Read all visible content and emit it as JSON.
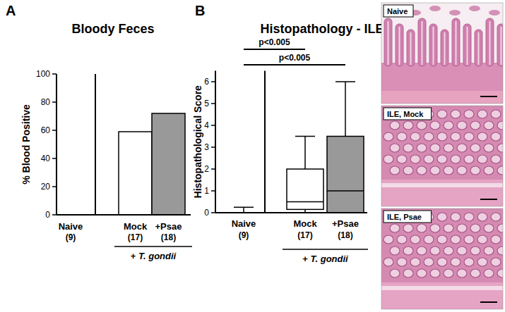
{
  "chart_data": [
    {
      "type": "bar",
      "panel_label": "A",
      "title": "Bloody Feces",
      "y_label": "% Blood Positive",
      "categories": [
        "Naive",
        "Mock",
        "+Psae"
      ],
      "n_labels": [
        "(9)",
        "(17)",
        "(18)"
      ],
      "group_label": "+ T. gondii",
      "values": [
        0,
        59,
        72
      ],
      "colors": [
        "#ffffff",
        "#ffffff",
        "#999999"
      ],
      "ylim": [
        0,
        100
      ],
      "yticks": [
        0,
        20,
        40,
        60,
        80,
        100
      ],
      "grid": false
    },
    {
      "type": "box",
      "panel_label": "B",
      "title": "Histopathology - ILEUM",
      "y_label": "Histopathological Score",
      "categories": [
        "Naive",
        "Mock",
        "+Psae"
      ],
      "n_labels": [
        "(9)",
        "(17)",
        "(18)"
      ],
      "group_label": "+ T. gondii",
      "min": [
        0,
        0,
        0
      ],
      "q1": [
        0,
        0.15,
        0
      ],
      "median": [
        0,
        0.5,
        1
      ],
      "q3": [
        0,
        2,
        3.5
      ],
      "max": [
        0.25,
        3.5,
        6
      ],
      "colors": [
        "#ffffff",
        "#ffffff",
        "#999999"
      ],
      "ylim": [
        0,
        6.5
      ],
      "yticks": [
        0,
        1,
        2,
        3,
        4,
        5,
        6
      ],
      "grid": false,
      "annotations": [
        {
          "text": "p<0.005",
          "between": [
            "Naive",
            "Mock"
          ]
        },
        {
          "text": "p<0.005",
          "between": [
            "Naive",
            "+Psae"
          ]
        }
      ],
      "image_labels": [
        "Naive",
        "ILE, Mock",
        "ILE, Psae"
      ]
    }
  ]
}
